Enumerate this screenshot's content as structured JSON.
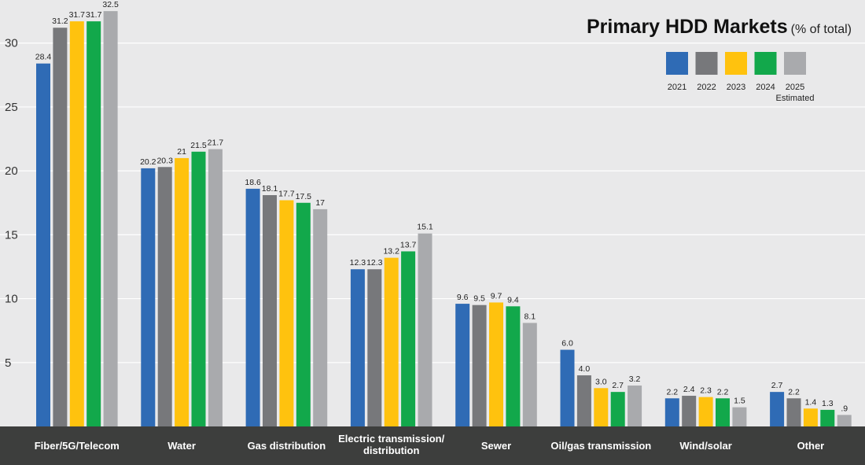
{
  "chart_data": {
    "type": "bar",
    "title": "Primary HDD Markets",
    "subtitle": "(% of total)",
    "xlabel": "",
    "ylabel": "",
    "ylim": [
      0,
      33
    ],
    "yticks": [
      5,
      10,
      15,
      20,
      25,
      30
    ],
    "grid": true,
    "legend_position": "top-right",
    "categories": [
      [
        "Fiber/5G/Telecom"
      ],
      [
        "Water"
      ],
      [
        "Gas distribution"
      ],
      [
        "Electric transmission/",
        "distribution"
      ],
      [
        "Sewer"
      ],
      [
        "Oil/gas transmission"
      ],
      [
        "Wind/solar"
      ],
      [
        "Other"
      ]
    ],
    "series": [
      {
        "name": "2021",
        "legend_lines": [
          "2021"
        ],
        "color": "#2f6bb5",
        "values": [
          28.4,
          20.2,
          18.6,
          12.3,
          9.6,
          6.0,
          2.2,
          2.7
        ],
        "labels": [
          "28.4",
          "20.2",
          "18.6",
          "12.3",
          "9.6",
          "6.0",
          "2.2",
          "2.7"
        ]
      },
      {
        "name": "2022",
        "legend_lines": [
          "2022"
        ],
        "color": "#77787b",
        "values": [
          31.2,
          20.3,
          18.1,
          12.3,
          9.5,
          4.0,
          2.4,
          2.2
        ],
        "labels": [
          "31.2",
          "20.3",
          "18.1",
          "12.3",
          "9.5",
          "4.0",
          "2.4",
          "2.2"
        ]
      },
      {
        "name": "2023",
        "legend_lines": [
          "2023"
        ],
        "color": "#ffc20e",
        "values": [
          31.7,
          21,
          17.7,
          13.2,
          9.7,
          3.0,
          2.3,
          1.4
        ],
        "labels": [
          "31.7",
          "21",
          "17.7",
          "13.2",
          "9.7",
          "3.0",
          "2.3",
          "1.4"
        ]
      },
      {
        "name": "2024",
        "legend_lines": [
          "2024"
        ],
        "color": "#12a84b",
        "values": [
          31.7,
          21.5,
          17.5,
          13.7,
          9.4,
          2.7,
          2.2,
          1.3
        ],
        "labels": [
          "31.7",
          "21.5",
          "17.5",
          "13.7",
          "9.4",
          "2.7",
          "2.2",
          "1.3"
        ]
      },
      {
        "name": "2025 Estimated",
        "legend_lines": [
          "2025",
          "Estimated"
        ],
        "color": "#a9aaad",
        "values": [
          32.5,
          21.7,
          17,
          15.1,
          8.1,
          3.2,
          1.5,
          0.9
        ],
        "labels": [
          "32.5",
          "21.7",
          "17",
          "15.1",
          "8.1",
          "3.2",
          "1.5",
          ".9"
        ]
      }
    ]
  },
  "colors": {
    "background": "#e9e9ea",
    "category_band": "#3d3e3d",
    "gridline": "#ffffff"
  }
}
